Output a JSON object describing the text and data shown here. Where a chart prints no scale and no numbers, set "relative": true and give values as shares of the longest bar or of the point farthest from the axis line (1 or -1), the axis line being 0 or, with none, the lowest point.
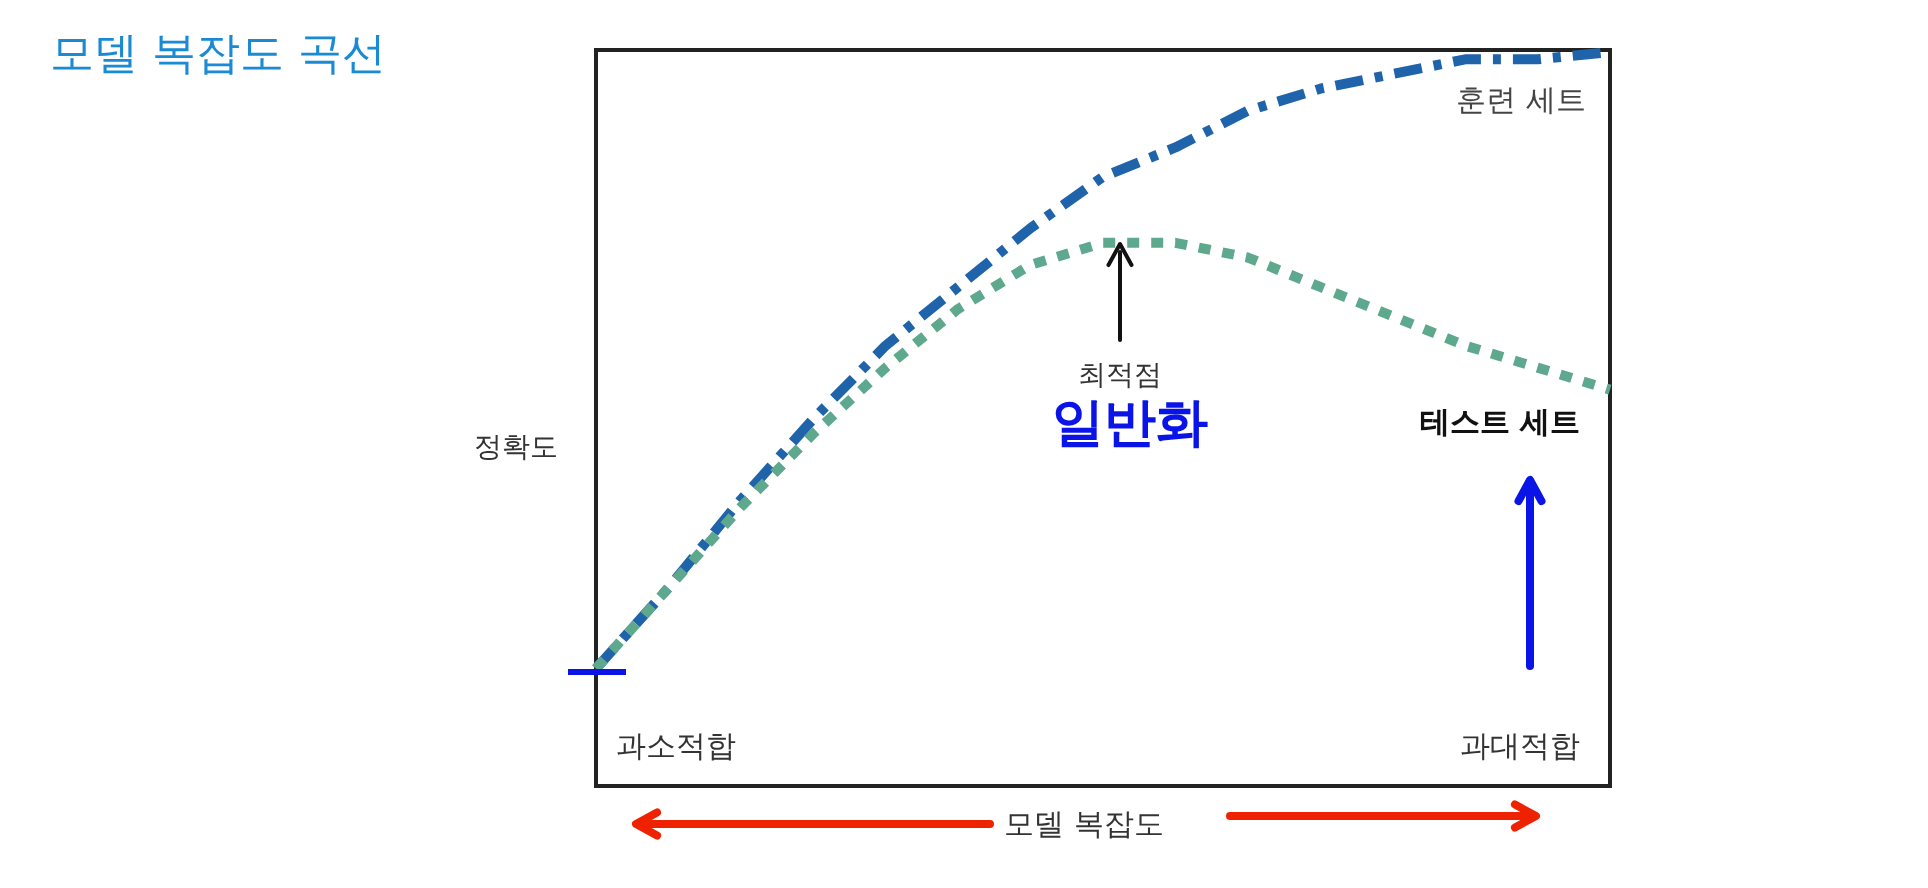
{
  "chart_data": {
    "type": "line",
    "title": "모델 복잡도 곡선",
    "xlabel": "모델 복잡도",
    "ylabel": "정확도",
    "relative": true,
    "categories": [
      null,
      null,
      null,
      null,
      null,
      null,
      null,
      null,
      null,
      null,
      null,
      null,
      null,
      null,
      null
    ],
    "series": [
      {
        "name": "훈련 세트",
        "color": "#1f64aa",
        "line_style": "dashed",
        "values": [
          0.16,
          0.27,
          0.39,
          0.5,
          0.6,
          0.68,
          0.76,
          0.83,
          0.87,
          0.92,
          0.95,
          0.97,
          0.99,
          0.99,
          1
        ]
      },
      {
        "name": "테스트 세트",
        "color": "#5ea88e",
        "line_style": "dotted",
        "values": [
          0.16,
          0.27,
          0.38,
          0.48,
          0.57,
          0.65,
          0.71,
          0.74,
          0.74,
          0.72,
          0.68,
          0.64,
          0.6,
          0.57,
          0.54
        ]
      }
    ],
    "annotations": [
      "최적점",
      "일반화",
      "과소적합",
      "과대적합"
    ]
  }
}
